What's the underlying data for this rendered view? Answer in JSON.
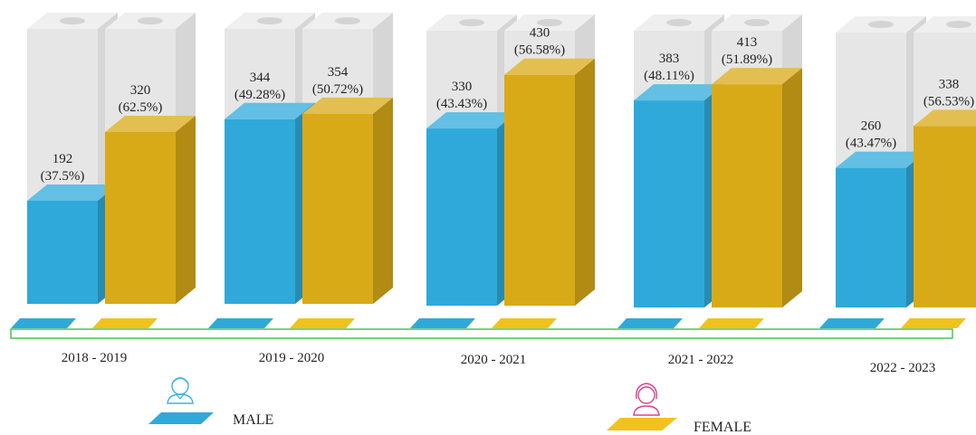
{
  "chart_data": {
    "type": "bar",
    "categories": [
      "2018 - 2019",
      "2019 - 2020",
      "2020 - 2021",
      "2021 - 2022",
      "2022 - 2023"
    ],
    "series": [
      {
        "name": "MALE",
        "values": [
          192,
          344,
          330,
          383,
          260
        ],
        "percent_labels": [
          "(37.5%)",
          "(49.28%)",
          "(43.43%)",
          "(48.11%)",
          "(43.47%)"
        ],
        "color": "#2fa9d9"
      },
      {
        "name": "FEMALE",
        "values": [
          320,
          354,
          430,
          413,
          338
        ],
        "percent_labels": [
          "(62.5%)",
          "(50.72%)",
          "(56.58%)",
          "(51.89%)",
          "(56.53%)"
        ],
        "color": "#d9aa18"
      }
    ],
    "value_max": 512,
    "legend": {
      "position": "bottom",
      "male_label": "MALE",
      "female_label": "FEMALE"
    },
    "colors": {
      "male": "#2fa9d9",
      "female": "#d9aa18",
      "track": "#e6e6e6",
      "baseline_border": "#3cbf4a"
    }
  }
}
